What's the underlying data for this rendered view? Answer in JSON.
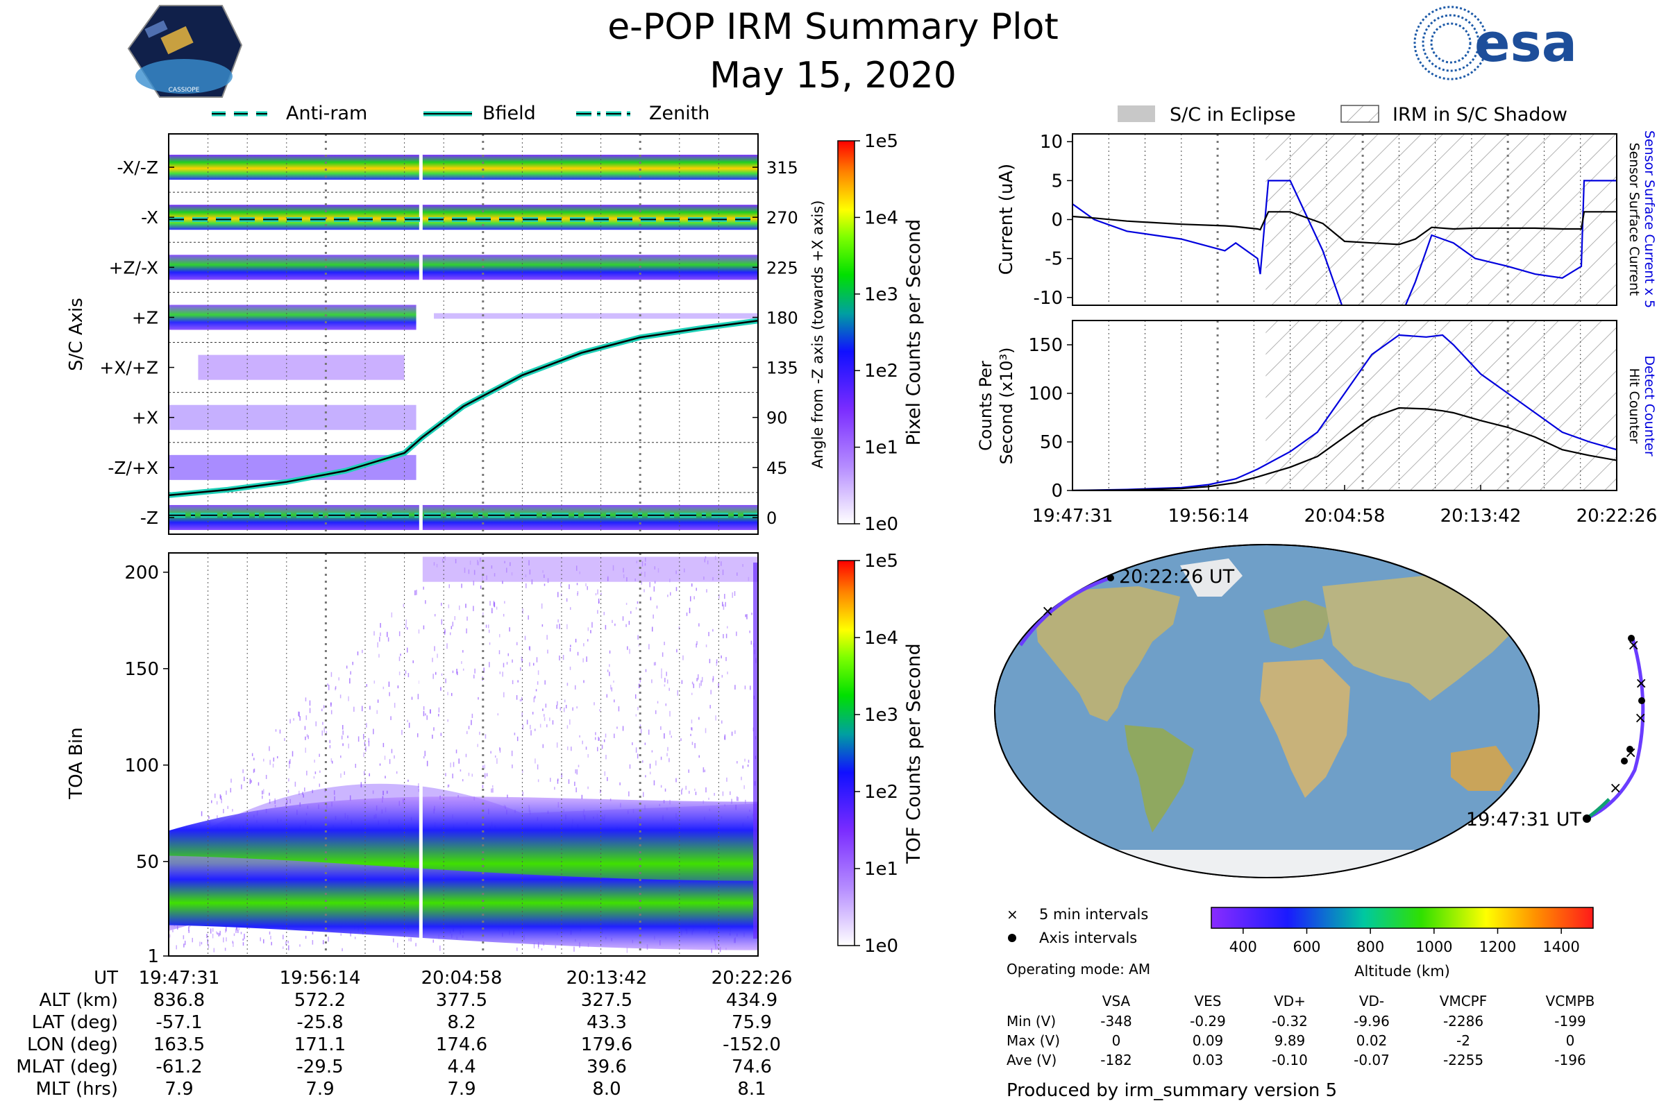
{
  "header": {
    "title": "e-POP IRM Summary Plot",
    "date": "May 15, 2020",
    "mission_logo_text": "CASSIOPE",
    "agency_logo_text": "esa"
  },
  "colors": {
    "cyan": "#1fd1b8",
    "blue_line": "#0000dd",
    "purple": "#8a3cff",
    "eclipse_gray": "#c8c8c8",
    "hatch_gray": "#999999",
    "ocean": "#6f9fc8",
    "land": "#b9b27a"
  },
  "chart_data": [
    {
      "id": "angle_panel",
      "type": "heatmap",
      "legend": [
        "Anti-ram",
        "Bfield",
        "Zenith"
      ],
      "ylabel_left": "S/C Axis",
      "ylabel_right": "Angle from -Z axis (towards +X axis)",
      "rows": [
        "-X/-Z",
        "-X",
        "+Z/-X",
        "+Z",
        "+X/+Z",
        "+X",
        "-Z/+X",
        "-Z"
      ],
      "angle_ticks": [
        "315",
        "270",
        "225",
        "180",
        "135",
        "90",
        "45",
        "0"
      ],
      "ylim": [
        -15,
        345
      ],
      "time_frac_bfield": [
        0,
        0.1,
        0.2,
        0.3,
        0.4,
        0.43,
        0.5,
        0.6,
        0.7,
        0.8,
        0.9,
        1.0
      ],
      "bfield_deg": [
        20,
        25,
        32,
        42,
        58,
        72,
        100,
        128,
        148,
        162,
        170,
        177
      ],
      "antiram_deg": 268,
      "zenith_deg": 2,
      "colorbar": {
        "label": "Pixel Counts per Second",
        "ticks": [
          "1e5",
          "1e4",
          "1e3",
          "1e2",
          "1e1",
          "1e0"
        ],
        "range": [
          1,
          100000
        ]
      }
    },
    {
      "id": "toa_panel",
      "type": "heatmap",
      "ylabel": "TOA Bin",
      "yticks": [
        "200",
        "150",
        "100",
        "50",
        "1"
      ],
      "ylim": [
        1,
        210
      ],
      "bands": [
        {
          "name": "upper",
          "center_start": 40,
          "center_end": 55
        },
        {
          "name": "lower",
          "center_start": 35,
          "center_end": 22
        }
      ],
      "colorbar": {
        "label": "TOF Counts per Second",
        "ticks": [
          "1e5",
          "1e4",
          "1e3",
          "1e2",
          "1e1",
          "1e0"
        ],
        "range": [
          1,
          100000
        ]
      }
    },
    {
      "id": "current_panel",
      "type": "line",
      "ylabel": "Current (uA)",
      "ylabel_right_1": "Sensor Surface Current x 5",
      "ylabel_right_2": "Sensor Surface Current",
      "yticks": [
        "10",
        "5",
        "0",
        "-5",
        "-10"
      ],
      "ylim": [
        -11,
        11
      ],
      "legend": [
        "S/C in Eclipse",
        "IRM in S/C Shadow"
      ],
      "eclipse_start_frac": 0.345,
      "shadow_start_frac": 0.345,
      "x_frac": [
        0,
        0.04,
        0.1,
        0.2,
        0.28,
        0.3,
        0.34,
        0.345,
        0.36,
        0.4,
        0.46,
        0.5,
        0.55,
        0.6,
        0.63,
        0.66,
        0.7,
        0.74,
        0.8,
        0.85,
        0.9,
        0.935,
        0.94,
        1.0
      ],
      "series": [
        {
          "name": "Sensor Surface Current x 5",
          "color": "#0000dd",
          "values": [
            2,
            0,
            -1.5,
            -2.5,
            -4,
            -3,
            -5,
            -7,
            5,
            5,
            -4,
            -12,
            -13,
            -13,
            -8,
            -2,
            -3,
            -5,
            -6,
            -7,
            -7.5,
            -6,
            5,
            5
          ]
        },
        {
          "name": "Sensor Surface Current",
          "color": "#000000",
          "values": [
            0.4,
            0.2,
            -0.2,
            -0.6,
            -0.8,
            -0.9,
            -1.2,
            -1.3,
            1.0,
            1.0,
            -0.5,
            -2.8,
            -3.0,
            -3.2,
            -2.5,
            -1.0,
            -1.2,
            -1.1,
            -1.1,
            -1.1,
            -1.2,
            -1.2,
            1.0,
            1.0
          ]
        }
      ]
    },
    {
      "id": "counts_panel",
      "type": "line",
      "ylabel_1": "Counts Per",
      "ylabel_2": "Second (x10³)",
      "ylabel_right_1": "Detect Counter",
      "ylabel_right_2": "Hit Counter",
      "yticks": [
        "150",
        "100",
        "50",
        "0"
      ],
      "ylim": [
        0,
        175
      ],
      "x_frac": [
        0,
        0.1,
        0.2,
        0.25,
        0.3,
        0.34,
        0.4,
        0.45,
        0.5,
        0.55,
        0.6,
        0.65,
        0.68,
        0.7,
        0.75,
        0.8,
        0.85,
        0.9,
        0.95,
        1.0
      ],
      "series": [
        {
          "name": "Detect Counter",
          "color": "#0000dd",
          "values": [
            0,
            1,
            3,
            6,
            12,
            22,
            40,
            60,
            100,
            140,
            160,
            158,
            160,
            150,
            120,
            100,
            80,
            60,
            50,
            42
          ]
        },
        {
          "name": "Hit Counter",
          "color": "#000000",
          "values": [
            0,
            0.5,
            2,
            4,
            8,
            14,
            24,
            35,
            55,
            75,
            85,
            84,
            82,
            80,
            72,
            65,
            55,
            42,
            36,
            31
          ]
        }
      ],
      "xticks": [
        "19:47:31",
        "19:56:14",
        "20:04:58",
        "20:13:42",
        "20:22:26"
      ]
    }
  ],
  "time_axis": {
    "ticks": [
      "19:47:31",
      "19:56:14",
      "20:04:58",
      "20:13:42",
      "20:22:26"
    ]
  },
  "ephemeris": {
    "rows": [
      {
        "label": "UT",
        "values": [
          "19:47:31",
          "19:56:14",
          "20:04:58",
          "20:13:42",
          "20:22:26"
        ]
      },
      {
        "label": "ALT (km)",
        "values": [
          "836.8",
          "572.2",
          "377.5",
          "327.5",
          "434.9"
        ]
      },
      {
        "label": "LAT (deg)",
        "values": [
          "-57.1",
          "-25.8",
          "8.2",
          "43.3",
          "75.9"
        ]
      },
      {
        "label": "LON (deg)",
        "values": [
          "163.5",
          "171.1",
          "174.6",
          "179.6",
          "-152.0"
        ]
      },
      {
        "label": "MLAT (deg)",
        "values": [
          "-61.2",
          "-29.5",
          "4.4",
          "39.6",
          "74.6"
        ]
      },
      {
        "label": "MLT (hrs)",
        "values": [
          "7.9",
          "7.9",
          "7.9",
          "8.0",
          "8.1"
        ]
      }
    ]
  },
  "map": {
    "start_label": "19:47:31 UT",
    "end_label": "20:22:26 UT",
    "legend_5min": "5 min intervals",
    "legend_axis": "Axis intervals",
    "operating_mode": "Operating mode: AM",
    "altitude_label": "Altitude (km)",
    "altitude_ticks": [
      "400",
      "600",
      "800",
      "1000",
      "1200",
      "1400"
    ],
    "altitude_range": [
      300,
      1500
    ]
  },
  "voltage_table": {
    "columns": [
      "VSA",
      "VES",
      "VD+",
      "VD-",
      "VMCPF",
      "VCMPB"
    ],
    "rows": [
      {
        "label": "Min (V)",
        "values": [
          "-348",
          "-0.29",
          "-0.32",
          "-9.96",
          "-2286",
          "-199"
        ]
      },
      {
        "label": "Max (V)",
        "values": [
          "0",
          "0.09",
          "9.89",
          "0.02",
          "-2",
          "0"
        ]
      },
      {
        "label": "Ave (V)",
        "values": [
          "-182",
          "0.03",
          "-0.10",
          "-0.07",
          "-2255",
          "-196"
        ]
      }
    ]
  },
  "footer": {
    "produced_by": "Produced by irm_summary version 5"
  }
}
